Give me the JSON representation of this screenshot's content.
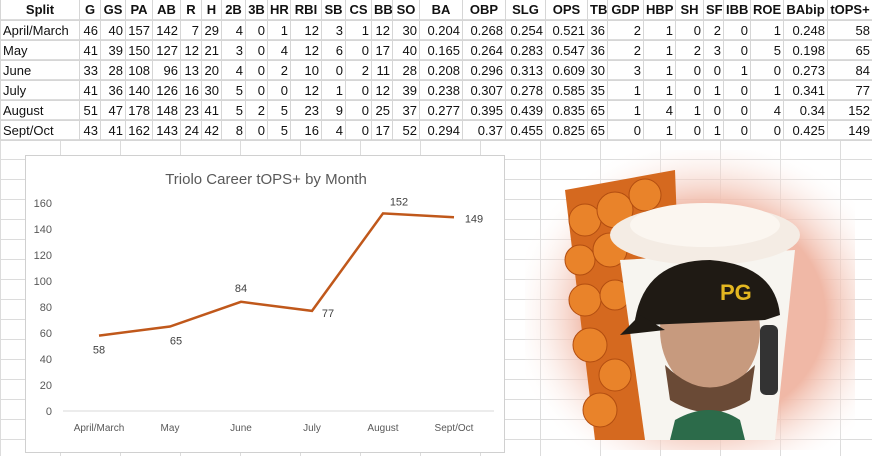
{
  "table": {
    "headers": [
      "Split",
      "G",
      "GS",
      "PA",
      "AB",
      "R",
      "H",
      "2B",
      "3B",
      "HR",
      "RBI",
      "SB",
      "CS",
      "BB",
      "SO",
      "BA",
      "OBP",
      "SLG",
      "OPS",
      "TB",
      "GDP",
      "HBP",
      "SH",
      "SF",
      "IBB",
      "ROE",
      "BAbip",
      "tOPS+"
    ],
    "rows": [
      [
        "April/March",
        "46",
        "40",
        "157",
        "142",
        "7",
        "29",
        "4",
        "0",
        "1",
        "12",
        "3",
        "1",
        "12",
        "30",
        "0.204",
        "0.268",
        "0.254",
        "0.521",
        "36",
        "2",
        "1",
        "0",
        "2",
        "0",
        "1",
        "0.248",
        "58"
      ],
      [
        "May",
        "41",
        "39",
        "150",
        "127",
        "12",
        "21",
        "3",
        "0",
        "4",
        "12",
        "6",
        "0",
        "17",
        "40",
        "0.165",
        "0.264",
        "0.283",
        "0.547",
        "36",
        "2",
        "1",
        "2",
        "3",
        "0",
        "5",
        "0.198",
        "65"
      ],
      [
        "June",
        "33",
        "28",
        "108",
        "96",
        "13",
        "20",
        "4",
        "0",
        "2",
        "10",
        "0",
        "2",
        "11",
        "28",
        "0.208",
        "0.296",
        "0.313",
        "0.609",
        "30",
        "3",
        "1",
        "0",
        "0",
        "1",
        "0",
        "0.273",
        "84"
      ],
      [
        "July",
        "41",
        "36",
        "140",
        "126",
        "16",
        "30",
        "5",
        "0",
        "0",
        "12",
        "1",
        "0",
        "12",
        "39",
        "0.238",
        "0.307",
        "0.278",
        "0.585",
        "35",
        "1",
        "1",
        "0",
        "1",
        "0",
        "1",
        "0.341",
        "77"
      ],
      [
        "August",
        "51",
        "47",
        "178",
        "148",
        "23",
        "41",
        "5",
        "2",
        "5",
        "23",
        "9",
        "0",
        "25",
        "37",
        "0.277",
        "0.395",
        "0.439",
        "0.835",
        "65",
        "1",
        "4",
        "1",
        "0",
        "0",
        "4",
        "0.34",
        "152"
      ],
      [
        "Sept/Oct",
        "43",
        "41",
        "162",
        "143",
        "24",
        "42",
        "8",
        "0",
        "5",
        "16",
        "4",
        "0",
        "17",
        "52",
        "0.294",
        "0.37",
        "0.455",
        "0.825",
        "65",
        "0",
        "1",
        "0",
        "1",
        "0",
        "0",
        "0.425",
        "149"
      ]
    ]
  },
  "chart_data": {
    "type": "line",
    "title": "Triolo Career tOPS+ by Month",
    "categories": [
      "April/March",
      "May",
      "June",
      "July",
      "August",
      "Sept/Oct"
    ],
    "series": [
      {
        "name": "tOPS+",
        "values": [
          58,
          65,
          84,
          77,
          152,
          149
        ]
      }
    ],
    "yticks": [
      0,
      20,
      40,
      60,
      80,
      100,
      120,
      140,
      160
    ],
    "ylim": [
      0,
      160
    ],
    "xlabel": "",
    "ylabel": "",
    "color": "#c0581b",
    "grid": false
  }
}
